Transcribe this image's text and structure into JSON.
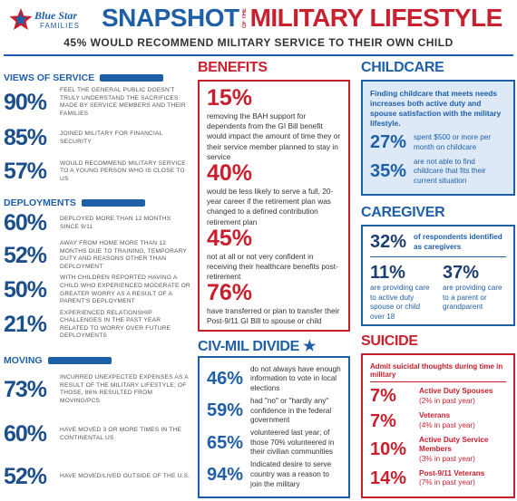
{
  "header": {
    "logo_line1": "Blue Star",
    "logo_line2": "FAMILIES",
    "title_part1": "SNAPSHOT",
    "title_small": "OF THE",
    "title_part2": "MILITARY LIFESTYLE",
    "subtitle": "45% WOULD RECOMMEND MILITARY SERVICE TO THEIR OWN CHILD"
  },
  "views_of_service": {
    "title": "VIEWS OF SERVICE",
    "items": [
      {
        "stat": "90%",
        "text": "FEEL THE GENERAL PUBLIC DOESN'T TRULY UNDERSTAND THE SACRIFICES MADE BY SERVICE MEMBERS AND THEIR FAMILIES"
      },
      {
        "stat": "85%",
        "text": "JOINED MILITARY FOR FINANCIAL SECURITY"
      },
      {
        "stat": "57%",
        "text": "WOULD RECOMMEND MILITARY SERVICE TO A YOUNG PERSON WHO IS CLOSE TO US"
      }
    ]
  },
  "deployments": {
    "title": "DEPLOYMENTS",
    "items": [
      {
        "stat": "60%",
        "text": "DEPLOYED MORE THAN 12 MONTHS SINCE 9/11"
      },
      {
        "stat": "52%",
        "text": "AWAY FROM HOME MORE THAN 12 MONTHS DUE TO TRAINING, TEMPORARY DUTY AND REASONS OTHER THAN DEPLOYMENT"
      },
      {
        "stat": "50%",
        "text": "WITH CHILDREN REPORTED HAVING A CHILD WHO EXPERIENCED MODERATE OR GREATER WORRY AS A RESULT OF A PARENT'S DEPLOYMENT"
      },
      {
        "stat": "21%",
        "text": "EXPERIENCED RELATIONSHIP CHALLENGES IN THE PAST YEAR RELATED TO WORRY OVER FUTURE DEPLOYMENTS"
      }
    ]
  },
  "moving": {
    "title": "MOVING",
    "items": [
      {
        "stat": "73%",
        "text": "INCURRED UNEXPECTED EXPENSES AS A RESULT OF THE MILITARY LIFESTYLE; OF THOSE, 86% RESULTED FROM MOVING/PCS"
      },
      {
        "stat": "60%",
        "text": "HAVE MOVED 3 OR MORE TIMES IN THE CONTINENTAL US"
      },
      {
        "stat": "52%",
        "text": "HAVE MOVED/LIVED OUTSIDE OF THE U.S."
      }
    ]
  },
  "benefits": {
    "title": "BENEFITS",
    "items": [
      {
        "stat": "15%",
        "text": "removing the BAH support for dependents from the GI Bill benefit would impact the amount of time they or their service member planned to stay in service"
      },
      {
        "stat": "40%",
        "text": "would be less likely to serve a full, 20-year career if the retirement plan was changed to a defined contribution retirement plan"
      },
      {
        "stat": "45%",
        "text": "not at all or not very confident in receiving their healthcare benefits post-retirement"
      },
      {
        "stat": "76%",
        "text": "have transferred or plan to transfer their Post-9/11 GI Bill to spouse or child"
      }
    ]
  },
  "civ_mil_divide": {
    "title": "CIV-MIL DIVIDE",
    "items": [
      {
        "stat": "46%",
        "text": "do not always have enough information to vote in local elections"
      },
      {
        "stat": "59%",
        "text": "had \"no\" or \"hardly any\" confidence in the federal government"
      },
      {
        "stat": "65%",
        "text": "volunteered last year; of those 70% volunteered in their civilian communities"
      },
      {
        "stat": "94%",
        "text": "Indicated desire to serve country was a reason to join the military"
      }
    ]
  },
  "childcare": {
    "title": "CHILDCARE",
    "intro": "Finding childcare that meets needs increases both active duty and spouse satisfaction with the military lifestyle.",
    "items": [
      {
        "stat": "27%",
        "text": "spent $500 or more per month on childcare"
      },
      {
        "stat": "35%",
        "text": "are not able to find childcare that fits their current situation"
      }
    ]
  },
  "caregiver": {
    "title": "CAREGIVER",
    "top": {
      "stat": "32%",
      "text": "of respondents identified as caregivers"
    },
    "items": [
      {
        "stat": "11%",
        "text": "are providing care to active duty spouse or child over 18"
      },
      {
        "stat": "37%",
        "text": "are providing care to a parent or grandparent"
      }
    ]
  },
  "suicide": {
    "title": "SUICIDE",
    "intro": "Admit suicidal thoughts during time in military",
    "items": [
      {
        "stat": "7%",
        "text": "Active Duty Spouses",
        "note": "(2% in past year)"
      },
      {
        "stat": "7%",
        "text": "Veterans",
        "note": "(4% in past year)"
      },
      {
        "stat": "10%",
        "text": "Active Duty Service Members",
        "note": "(3% in past year)"
      },
      {
        "stat": "14%",
        "text": "Post-9/11 Veterans",
        "note": "(7% in past year)"
      }
    ]
  }
}
